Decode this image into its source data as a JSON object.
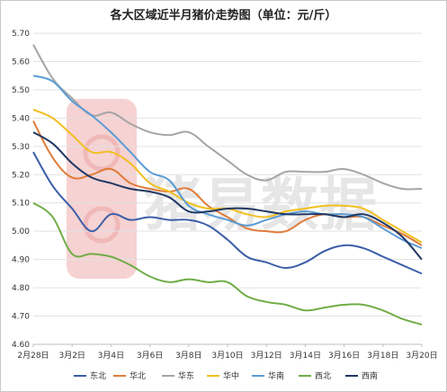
{
  "chart_data": {
    "type": "line",
    "title": "各大区域近半月猪价走势图（单位：元/斤）",
    "xlabel": "",
    "ylabel": "",
    "ylim": [
      4.6,
      5.7
    ],
    "yticks": [
      "5.70",
      "5.60",
      "5.50",
      "5.40",
      "5.30",
      "5.20",
      "5.10",
      "5.00",
      "4.90",
      "4.80",
      "4.70",
      "4.60"
    ],
    "ytick_values": [
      5.7,
      5.6,
      5.5,
      5.4,
      5.3,
      5.2,
      5.1,
      5.0,
      4.9,
      4.8,
      4.7,
      4.6
    ],
    "x": [
      "2月28日",
      "3月1日",
      "3月2日",
      "3月3日",
      "3月4日",
      "3月5日",
      "3月6日",
      "3月7日",
      "3月8日",
      "3月9日",
      "3月10日",
      "3月11日",
      "3月12日",
      "3月13日",
      "3月14日",
      "3月15日",
      "3月16日",
      "3月17日",
      "3月18日",
      "3月19日",
      "3月20日"
    ],
    "xticks_visible": [
      "2月28日",
      "3月2日",
      "3月4日",
      "3月6日",
      "3月8日",
      "3月10日",
      "3月12日",
      "3月14日",
      "3月16日",
      "3月18日",
      "3月20日"
    ],
    "legend_position": "bottom",
    "grid": true,
    "watermark": "猪易数据",
    "series": [
      {
        "name": "东北",
        "color": "#3b5ea8",
        "values": [
          5.28,
          5.16,
          5.08,
          5.0,
          5.06,
          5.04,
          5.05,
          5.04,
          5.04,
          5.02,
          4.97,
          4.91,
          4.89,
          4.87,
          4.89,
          4.93,
          4.95,
          4.94,
          4.91,
          4.88,
          4.85
        ]
      },
      {
        "name": "华北",
        "color": "#e07b39",
        "values": [
          5.39,
          5.26,
          5.19,
          5.2,
          5.22,
          5.17,
          5.15,
          5.14,
          5.15,
          5.09,
          5.05,
          5.01,
          5.0,
          5.0,
          5.04,
          5.06,
          5.05,
          5.05,
          5.02,
          4.99,
          4.95
        ]
      },
      {
        "name": "华东",
        "color": "#a5a5a5",
        "values": [
          5.66,
          5.54,
          5.47,
          5.41,
          5.42,
          5.38,
          5.35,
          5.34,
          5.35,
          5.3,
          5.25,
          5.2,
          5.18,
          5.21,
          5.21,
          5.21,
          5.22,
          5.2,
          5.17,
          5.15,
          5.15
        ]
      },
      {
        "name": "华中",
        "color": "#f0c020",
        "values": [
          5.43,
          5.4,
          5.34,
          5.28,
          5.28,
          5.24,
          5.17,
          5.14,
          5.1,
          5.08,
          5.08,
          5.06,
          5.05,
          5.07,
          5.08,
          5.09,
          5.09,
          5.08,
          5.04,
          5.0,
          4.96
        ]
      },
      {
        "name": "华南",
        "color": "#5b9bd5",
        "values": [
          5.55,
          5.53,
          5.46,
          5.41,
          5.35,
          5.28,
          5.21,
          5.18,
          5.09,
          5.06,
          5.04,
          5.02,
          5.04,
          5.06,
          5.07,
          5.06,
          5.06,
          5.05,
          5.01,
          4.97,
          4.94
        ]
      },
      {
        "name": "西北",
        "color": "#70ad47",
        "values": [
          5.1,
          5.05,
          4.92,
          4.92,
          4.91,
          4.88,
          4.84,
          4.82,
          4.83,
          4.82,
          4.82,
          4.77,
          4.75,
          4.74,
          4.72,
          4.73,
          4.74,
          4.74,
          4.72,
          4.69,
          4.67
        ]
      },
      {
        "name": "西南",
        "color": "#1f3864",
        "values": [
          5.35,
          5.31,
          5.24,
          5.19,
          5.17,
          5.15,
          5.14,
          5.12,
          5.07,
          5.07,
          5.08,
          5.08,
          5.07,
          5.06,
          5.06,
          5.06,
          5.05,
          5.06,
          5.03,
          4.98,
          4.9
        ]
      }
    ]
  }
}
